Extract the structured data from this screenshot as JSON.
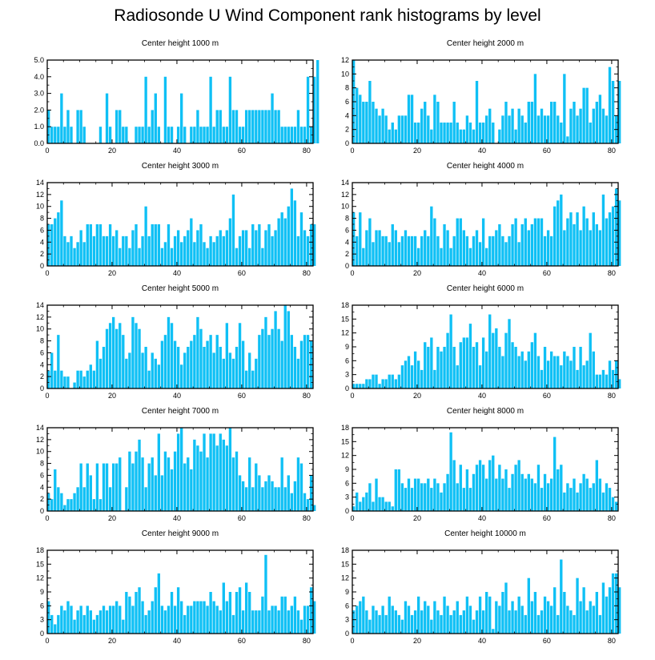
{
  "page_title": "Radiosonde U Wind Component rank histograms by level",
  "colors": {
    "bar": "#0FC0F5",
    "frame": "#000000",
    "background": "#FFFFFF"
  },
  "chart_data": [
    {
      "type": "bar",
      "title": "Center height 1000 m",
      "x_start": 0,
      "bar_width": 1,
      "xlim": [
        0,
        82
      ],
      "ylim": [
        0,
        5
      ],
      "x_ticks": [
        0,
        20,
        40,
        60,
        80
      ],
      "y_ticks": [
        0,
        1,
        2,
        3,
        4,
        5
      ],
      "y_tick_labels": [
        "0.0",
        "1.0",
        "2.0",
        "3.0",
        "4.0",
        "5.0"
      ],
      "values": [
        2,
        1,
        1,
        1,
        3,
        1,
        2,
        1,
        0,
        2,
        2,
        1,
        0,
        0,
        0,
        0,
        1,
        0,
        3,
        1,
        0,
        2,
        2,
        1,
        1,
        0,
        0,
        1,
        1,
        1,
        4,
        1,
        2,
        3,
        1,
        0,
        4,
        1,
        1,
        0,
        1,
        3,
        1,
        0,
        1,
        1,
        2,
        1,
        1,
        1,
        4,
        1,
        2,
        2,
        1,
        1,
        4,
        2,
        2,
        1,
        1,
        2,
        2,
        2,
        2,
        2,
        2,
        2,
        2,
        3,
        2,
        2,
        1,
        1,
        1,
        1,
        1,
        2,
        1,
        1,
        4,
        1,
        4,
        5
      ]
    },
    {
      "type": "bar",
      "title": "Center height 2000 m",
      "x_start": 0,
      "bar_width": 1,
      "xlim": [
        0,
        82
      ],
      "ylim": [
        0,
        12
      ],
      "x_ticks": [
        0,
        20,
        40,
        60,
        80
      ],
      "y_ticks": [
        0,
        2,
        4,
        6,
        8,
        10,
        12
      ],
      "y_tick_labels": [
        "0",
        "2",
        "4",
        "6",
        "8",
        "10",
        "12"
      ],
      "values": [
        12,
        8,
        7,
        6,
        6,
        9,
        6,
        5,
        4,
        5,
        4,
        2,
        3,
        2,
        4,
        4,
        4,
        7,
        7,
        3,
        3,
        5,
        6,
        4,
        2,
        7,
        6,
        3,
        3,
        3,
        3,
        6,
        3,
        2,
        2,
        4,
        3,
        2,
        9,
        3,
        3,
        4,
        5,
        3,
        0,
        2,
        4,
        6,
        4,
        5,
        2,
        5,
        4,
        3,
        6,
        6,
        10,
        4,
        5,
        4,
        4,
        6,
        6,
        4,
        3,
        10,
        1,
        5,
        6,
        4,
        5,
        8,
        8,
        3,
        5,
        6,
        7,
        5,
        4,
        11,
        9,
        4,
        9
      ]
    },
    {
      "type": "bar",
      "title": "Center height 3000 m",
      "x_start": 0,
      "bar_width": 1,
      "xlim": [
        0,
        82
      ],
      "ylim": [
        0,
        14
      ],
      "x_ticks": [
        0,
        20,
        40,
        60,
        80
      ],
      "y_ticks": [
        0,
        2,
        4,
        6,
        8,
        10,
        12,
        14
      ],
      "y_tick_labels": [
        "0",
        "2",
        "4",
        "6",
        "8",
        "10",
        "12",
        "14"
      ],
      "values": [
        7,
        7,
        8,
        9,
        11,
        5,
        4,
        5,
        3,
        4,
        6,
        4,
        7,
        7,
        5,
        7,
        7,
        5,
        5,
        7,
        5,
        6,
        3,
        5,
        5,
        3,
        6,
        7,
        3,
        5,
        10,
        5,
        7,
        7,
        7,
        3,
        4,
        7,
        3,
        5,
        6,
        4,
        5,
        6,
        8,
        4,
        6,
        7,
        4,
        3,
        5,
        4,
        5,
        6,
        5,
        6,
        8,
        12,
        3,
        5,
        6,
        6,
        3,
        7,
        6,
        7,
        3,
        6,
        7,
        5,
        6,
        8,
        9,
        8,
        10,
        13,
        11,
        5,
        9,
        6,
        5,
        7,
        7
      ]
    },
    {
      "type": "bar",
      "title": "Center height 4000 m",
      "x_start": 0,
      "bar_width": 1,
      "xlim": [
        0,
        82
      ],
      "ylim": [
        0,
        14
      ],
      "x_ticks": [
        0,
        20,
        40,
        60,
        80
      ],
      "y_ticks": [
        0,
        2,
        4,
        6,
        8,
        10,
        12,
        14
      ],
      "y_tick_labels": [
        "0",
        "2",
        "4",
        "6",
        "8",
        "10",
        "12",
        "14"
      ],
      "values": [
        9,
        5,
        9,
        3,
        6,
        8,
        4,
        6,
        6,
        5,
        5,
        4,
        7,
        6,
        4,
        5,
        6,
        5,
        5,
        5,
        3,
        5,
        6,
        5,
        10,
        8,
        5,
        3,
        7,
        6,
        3,
        5,
        8,
        8,
        6,
        5,
        3,
        5,
        6,
        4,
        8,
        3,
        5,
        5,
        6,
        7,
        5,
        4,
        5,
        7,
        8,
        4,
        7,
        8,
        6,
        7,
        8,
        8,
        8,
        5,
        6,
        5,
        10,
        11,
        12,
        6,
        8,
        9,
        7,
        9,
        6,
        10,
        8,
        6,
        9,
        7,
        6,
        12,
        8,
        9,
        10,
        13,
        11
      ]
    },
    {
      "type": "bar",
      "title": "Center height 5000 m",
      "x_start": 0,
      "bar_width": 1,
      "xlim": [
        0,
        82
      ],
      "ylim": [
        0,
        14
      ],
      "x_ticks": [
        0,
        20,
        40,
        60,
        80
      ],
      "y_ticks": [
        0,
        2,
        4,
        6,
        8,
        10,
        12,
        14
      ],
      "y_tick_labels": [
        "0",
        "2",
        "4",
        "6",
        "8",
        "10",
        "12",
        "14"
      ],
      "values": [
        3,
        6,
        3,
        9,
        3,
        2,
        2,
        0,
        1,
        3,
        3,
        2,
        3,
        4,
        3,
        8,
        5,
        7,
        10,
        11,
        12,
        10,
        11,
        9,
        5,
        6,
        12,
        11,
        10,
        6,
        7,
        3,
        6,
        5,
        4,
        8,
        9,
        12,
        11,
        8,
        7,
        4,
        6,
        7,
        8,
        9,
        12,
        10,
        7,
        8,
        9,
        6,
        9,
        7,
        5,
        11,
        6,
        5,
        7,
        11,
        8,
        3,
        6,
        3,
        5,
        9,
        10,
        12,
        9,
        10,
        13,
        10,
        8,
        14,
        13,
        9,
        7,
        5,
        8,
        9,
        9,
        8
      ]
    },
    {
      "type": "bar",
      "title": "Center height 6000 m",
      "x_start": 0,
      "bar_width": 1,
      "xlim": [
        0,
        82
      ],
      "ylim": [
        0,
        18
      ],
      "x_ticks": [
        0,
        20,
        40,
        60,
        80
      ],
      "y_ticks": [
        0,
        3,
        6,
        9,
        12,
        15,
        18
      ],
      "y_tick_labels": [
        "0",
        "3",
        "6",
        "9",
        "12",
        "15",
        "18"
      ],
      "values": [
        1,
        1,
        1,
        1,
        2,
        2,
        3,
        3,
        1,
        2,
        2,
        3,
        3,
        2,
        3,
        5,
        6,
        7,
        5,
        8,
        6,
        4,
        10,
        9,
        11,
        4,
        9,
        8,
        9,
        12,
        16,
        9,
        5,
        10,
        11,
        11,
        14,
        9,
        10,
        5,
        11,
        8,
        16,
        12,
        13,
        9,
        7,
        12,
        15,
        10,
        9,
        7,
        8,
        6,
        8,
        10,
        12,
        7,
        4,
        9,
        6,
        8,
        7,
        7,
        5,
        8,
        7,
        6,
        9,
        4,
        9,
        5,
        6,
        12,
        8,
        3,
        3,
        4,
        3,
        6,
        4,
        6,
        2
      ]
    },
    {
      "type": "bar",
      "title": "Center height 7000 m",
      "x_start": 0,
      "bar_width": 1,
      "xlim": [
        0,
        82
      ],
      "ylim": [
        0,
        14
      ],
      "x_ticks": [
        0,
        20,
        40,
        60,
        80
      ],
      "y_ticks": [
        0,
        2,
        4,
        6,
        8,
        10,
        12,
        14
      ],
      "y_tick_labels": [
        "0",
        "2",
        "4",
        "6",
        "8",
        "10",
        "12",
        "14"
      ],
      "values": [
        3,
        2,
        7,
        4,
        3,
        1,
        2,
        2,
        3,
        4,
        8,
        4,
        8,
        6,
        2,
        8,
        2,
        8,
        8,
        4,
        8,
        8,
        9,
        0,
        4,
        10,
        8,
        10,
        12,
        9,
        4,
        8,
        9,
        6,
        13,
        6,
        10,
        9,
        7,
        10,
        13,
        14,
        8,
        9,
        7,
        12,
        11,
        10,
        13,
        9,
        13,
        13,
        11,
        13,
        12,
        11,
        14,
        9,
        10,
        6,
        5,
        4,
        9,
        4,
        8,
        6,
        4,
        5,
        6,
        5,
        4,
        4,
        9,
        4,
        6,
        3,
        5,
        9,
        8,
        3,
        2,
        6,
        1
      ]
    },
    {
      "type": "bar",
      "title": "Center height 8000 m",
      "x_start": 0,
      "bar_width": 1,
      "xlim": [
        0,
        82
      ],
      "ylim": [
        0,
        18
      ],
      "x_ticks": [
        0,
        20,
        40,
        60,
        80
      ],
      "y_ticks": [
        0,
        3,
        6,
        9,
        12,
        15,
        18
      ],
      "y_tick_labels": [
        "0",
        "3",
        "6",
        "9",
        "12",
        "15",
        "18"
      ],
      "values": [
        1,
        4,
        2,
        3,
        4,
        6,
        2,
        7,
        3,
        3,
        2,
        2,
        1,
        9,
        9,
        6,
        5,
        7,
        5,
        7,
        7,
        6,
        6,
        7,
        5,
        7,
        6,
        4,
        6,
        8,
        17,
        11,
        6,
        10,
        5,
        9,
        5,
        8,
        10,
        11,
        10,
        7,
        11,
        12,
        7,
        10,
        7,
        9,
        5,
        8,
        10,
        11,
        8,
        7,
        8,
        7,
        6,
        10,
        5,
        8,
        6,
        7,
        16,
        9,
        10,
        4,
        6,
        5,
        7,
        4,
        6,
        8,
        7,
        5,
        6,
        11,
        7,
        4,
        6,
        5,
        3,
        2
      ]
    },
    {
      "type": "bar",
      "title": "Center height 9000 m",
      "x_start": 0,
      "bar_width": 1,
      "xlim": [
        0,
        82
      ],
      "ylim": [
        0,
        18
      ],
      "x_ticks": [
        0,
        20,
        40,
        60,
        80
      ],
      "y_ticks": [
        0,
        3,
        6,
        9,
        12,
        15,
        18
      ],
      "y_tick_labels": [
        "0",
        "3",
        "6",
        "9",
        "12",
        "15",
        "18"
      ],
      "values": [
        7,
        4,
        2,
        4,
        6,
        5,
        7,
        6,
        3,
        5,
        6,
        4,
        6,
        5,
        3,
        4,
        5,
        6,
        5,
        6,
        6,
        7,
        6,
        3,
        9,
        8,
        6,
        9,
        10,
        7,
        4,
        5,
        7,
        10,
        13,
        6,
        5,
        6,
        9,
        6,
        10,
        7,
        4,
        6,
        6,
        7,
        7,
        7,
        7,
        6,
        9,
        7,
        6,
        5,
        11,
        7,
        9,
        4,
        9,
        10,
        5,
        11,
        9,
        5,
        5,
        5,
        8,
        17,
        5,
        6,
        6,
        5,
        8,
        8,
        5,
        6,
        8,
        5,
        3,
        6,
        6,
        10,
        7
      ]
    },
    {
      "type": "bar",
      "title": "Center height 10000 m",
      "x_start": 0,
      "bar_width": 1,
      "xlim": [
        0,
        82
      ],
      "ylim": [
        0,
        18
      ],
      "x_ticks": [
        0,
        20,
        40,
        60,
        80
      ],
      "y_ticks": [
        0,
        3,
        6,
        9,
        12,
        15,
        18
      ],
      "y_tick_labels": [
        "0",
        "3",
        "6",
        "9",
        "12",
        "15",
        "18"
      ],
      "values": [
        5,
        6,
        7,
        8,
        5,
        3,
        6,
        5,
        4,
        6,
        4,
        8,
        6,
        5,
        4,
        3,
        7,
        6,
        4,
        5,
        8,
        5,
        7,
        6,
        3,
        7,
        5,
        4,
        8,
        6,
        4,
        5,
        7,
        4,
        5,
        8,
        6,
        3,
        5,
        8,
        5,
        9,
        8,
        1,
        7,
        6,
        9,
        11,
        5,
        7,
        5,
        8,
        6,
        4,
        12,
        7,
        9,
        4,
        5,
        8,
        7,
        6,
        10,
        4,
        16,
        9,
        6,
        5,
        4,
        12,
        7,
        10,
        5,
        7,
        6,
        9,
        4,
        11,
        8,
        10,
        13,
        13,
        10
      ]
    }
  ]
}
